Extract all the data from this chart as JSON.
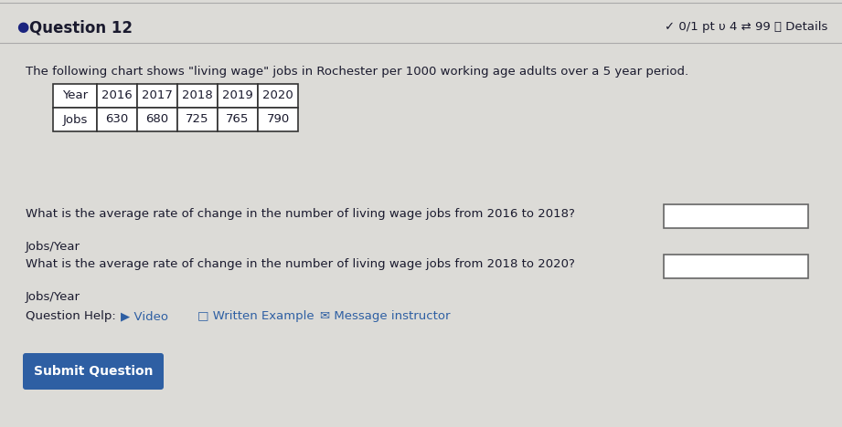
{
  "background_color": "#dcdbd7",
  "question_number": "Question 12",
  "header_right": "✓ 0/1 pt υ 4 ⇄ 99 ⓘ Details",
  "intro_text": "The following chart shows \"living wage\" jobs in Rochester per 1000 working age adults over a 5 year period.",
  "table_headers": [
    "Year",
    "2016",
    "2017",
    "2018",
    "2019",
    "2020"
  ],
  "table_row": [
    "Jobs",
    "630",
    "680",
    "725",
    "765",
    "790"
  ],
  "question1": "What is the average rate of change in the number of living wage jobs from 2016 to 2018?",
  "unit1": "Jobs/Year",
  "question2": "What is the average rate of change in the number of living wage jobs from 2018 to 2020?",
  "unit2": "Jobs/Year",
  "help_text": "Question Help:",
  "submit_text": "Submit Question",
  "submit_bg": "#2e5fa3",
  "submit_text_color": "#ffffff",
  "table_bg": "#ffffff",
  "table_border": "#333333",
  "text_color": "#1a1a2e",
  "link_color": "#2e5fa3",
  "divider_color": "#aaaaaa",
  "bullet_color": "#1a237e",
  "header_text_color": "#1a1a2e"
}
